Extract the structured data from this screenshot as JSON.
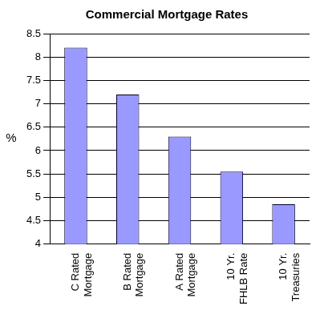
{
  "chart_data": {
    "type": "bar",
    "title": "Commercial Mortgage Rates",
    "y_label": "%",
    "categories": [
      [
        "C Rated",
        "Mortgage"
      ],
      [
        "B Rated",
        "Mortgage"
      ],
      [
        "A Rated",
        "Mortgage"
      ],
      [
        "10 Yr.",
        "FHLB Rate"
      ],
      [
        "10 Yr.",
        "Treasuries"
      ]
    ],
    "values": [
      8.2,
      7.2,
      6.3,
      5.55,
      4.85
    ],
    "color": "#9999ff",
    "ylim": [
      4,
      8.5
    ],
    "yticks": [
      4,
      4.5,
      5,
      5.5,
      6,
      6.5,
      7,
      7.5,
      8,
      8.5
    ],
    "grid": true
  }
}
